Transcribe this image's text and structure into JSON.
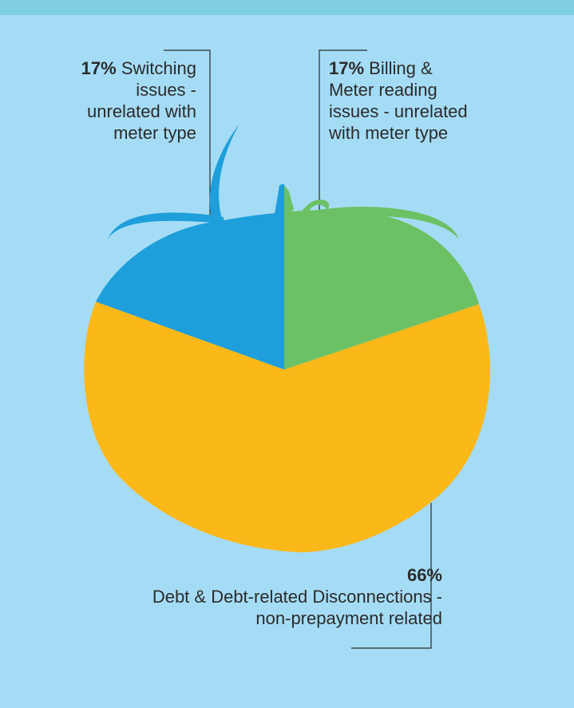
{
  "chart_data": {
    "type": "pie",
    "slices": [
      {
        "label": "Debt & Debt-related Disconnections - non-prepayment related",
        "value": 66,
        "value_label": "66%",
        "color": "#fbb819"
      },
      {
        "label": "Switching issues - unrelated with meter type",
        "value": 17,
        "value_label": "17%",
        "color": "#1e9fdb"
      },
      {
        "label": "Billing & Meter reading issues - unrelated with meter type",
        "value": 17,
        "value_label": "17%",
        "color": "#6cc164"
      }
    ]
  },
  "labels": {
    "left": {
      "pct": "17%",
      "text1": "Switching",
      "text2": "issues -",
      "text3": "unrelated with",
      "text4": "meter type"
    },
    "right": {
      "pct": "17%",
      "text1": "Billing &",
      "text2": "Meter reading",
      "text3": "issues - unrelated",
      "text4": "with meter type"
    },
    "bottom": {
      "pct": "66%",
      "text1": "Debt & Debt-related Disconnections -",
      "text2": "non-prepayment related"
    }
  },
  "colors": {
    "background": "#a5dcf5",
    "top_band": "#7fcfe1",
    "leader_line": "#2b2b2b"
  }
}
